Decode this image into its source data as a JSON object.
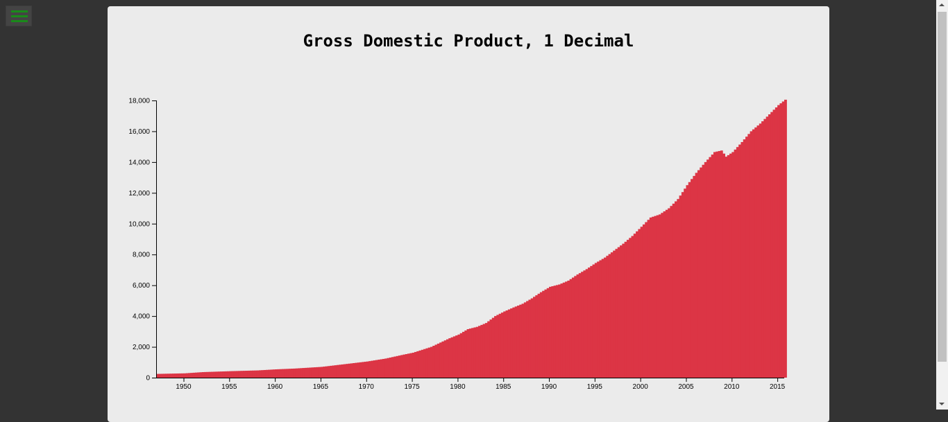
{
  "menu": {
    "icon": "hamburger-menu-icon",
    "color": "#1a8a1a"
  },
  "colors": {
    "area": "#dc3545",
    "card": "#ebebeb",
    "background": "#333333"
  },
  "chart_data": {
    "type": "bar",
    "title": "Gross Domestic Product, 1 Decimal",
    "xlabel": "",
    "ylabel": "",
    "xlim": [
      1947,
      2015.75
    ],
    "ylim": [
      0,
      18000
    ],
    "x_ticks": [
      "1950",
      "1955",
      "1960",
      "1965",
      "1970",
      "1975",
      "1980",
      "1985",
      "1990",
      "1995",
      "2000",
      "2005",
      "2010",
      "2015"
    ],
    "y_ticks": [
      "0",
      "2,000",
      "4,000",
      "6,000",
      "8,000",
      "10,000",
      "12,000",
      "14,000",
      "16,000",
      "18,000"
    ],
    "grid": false,
    "legend": "none",
    "series": [
      {
        "frequency": "quarterly",
        "start": "1947-Q1",
        "anchors": [
          [
            1947,
            243
          ],
          [
            1950,
            280
          ],
          [
            1952,
            360
          ],
          [
            1955,
            420
          ],
          [
            1958,
            470
          ],
          [
            1960,
            540
          ],
          [
            1962,
            590
          ],
          [
            1965,
            700
          ],
          [
            1968,
            910
          ],
          [
            1970,
            1050
          ],
          [
            1972,
            1240
          ],
          [
            1974,
            1500
          ],
          [
            1975,
            1620
          ],
          [
            1977,
            2000
          ],
          [
            1979,
            2560
          ],
          [
            1980,
            2800
          ],
          [
            1981,
            3150
          ],
          [
            1982,
            3300
          ],
          [
            1983,
            3550
          ],
          [
            1984,
            4000
          ],
          [
            1985,
            4300
          ],
          [
            1986,
            4560
          ],
          [
            1987,
            4800
          ],
          [
            1988,
            5150
          ],
          [
            1989,
            5550
          ],
          [
            1990,
            5900
          ],
          [
            1991,
            6050
          ],
          [
            1992,
            6300
          ],
          [
            1993,
            6700
          ],
          [
            1994,
            7050
          ],
          [
            1995,
            7450
          ],
          [
            1996,
            7800
          ],
          [
            1997,
            8250
          ],
          [
            1998,
            8700
          ],
          [
            1999,
            9200
          ],
          [
            2000,
            9800
          ],
          [
            2001,
            10400
          ],
          [
            2002,
            10600
          ],
          [
            2003,
            11000
          ],
          [
            2004,
            11600
          ],
          [
            2005,
            12500
          ],
          [
            2006,
            13300
          ],
          [
            2007,
            14000
          ],
          [
            2008,
            14650
          ],
          [
            2008.75,
            14750
          ],
          [
            2009.25,
            14350
          ],
          [
            2010,
            14650
          ],
          [
            2011,
            15300
          ],
          [
            2012,
            16000
          ],
          [
            2013,
            16500
          ],
          [
            2014,
            17100
          ],
          [
            2015,
            17700
          ],
          [
            2015.75,
            18050
          ]
        ]
      }
    ]
  }
}
